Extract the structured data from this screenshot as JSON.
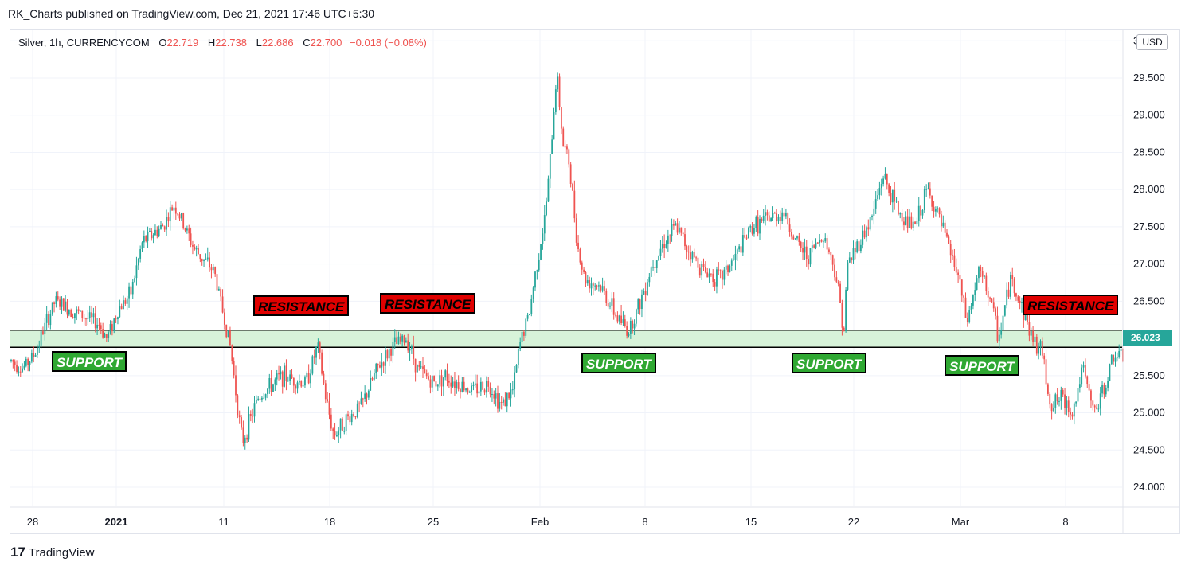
{
  "header": {
    "published_by": "RK_Charts published on TradingView.com, Dec 21, 2021 17:46 UTC+5:30"
  },
  "legend": {
    "symbol": "Silver, 1h, CURRENCYCOM",
    "open_label": "O",
    "open": "22.719",
    "high_label": "H",
    "high": "22.738",
    "low_label": "L",
    "low": "22.686",
    "close_label": "C",
    "close": "22.700",
    "change": "−0.018 (−0.08%)"
  },
  "currency_badge": "USD",
  "last_price_tag": "26.023",
  "footer": {
    "brand": "TradingView",
    "logo_glyph": "17"
  },
  "annotations": {
    "resistance_1": "RESISTANCE",
    "resistance_2": "RESISTANCE",
    "resistance_3": "RESISTANCE",
    "support_1": "SUPPORT",
    "support_2": "SUPPORT",
    "support_3": "SUPPORT",
    "support_4": "SUPPORT"
  },
  "colors": {
    "up": "#26a69a",
    "down": "#ef5350",
    "zone_fill": "#d7f3d9",
    "resistance_box": "#e00000",
    "support_box": "#2fa832"
  },
  "chart_data": {
    "type": "candlestick",
    "title": "",
    "xlabel": "",
    "ylabel": "",
    "ylim": [
      23.75,
      30.5
    ],
    "y_ticks": [
      "24.000",
      "24.500",
      "25.000",
      "25.500",
      "26.000",
      "26.500",
      "27.000",
      "27.500",
      "28.000",
      "28.500",
      "29.000",
      "29.500",
      "3"
    ],
    "x_ticks": [
      "28",
      "2021",
      "11",
      "18",
      "25",
      "Feb",
      "8",
      "15",
      "22",
      "Mar",
      "8"
    ],
    "x_tick_bold": [
      "2021"
    ],
    "support_resistance_zone": {
      "low": 25.88,
      "high": 26.11
    },
    "last_price": 26.023,
    "price_path_x": [
      0,
      15,
      30,
      40,
      55,
      90,
      110,
      120,
      135,
      150,
      165,
      190,
      205,
      230,
      255,
      275,
      290,
      310,
      340,
      370,
      385,
      395,
      405,
      420,
      440,
      460,
      480,
      497,
      510,
      530,
      545,
      560,
      580,
      600,
      615,
      630,
      640,
      650,
      660,
      670,
      677,
      685,
      693,
      700,
      712,
      720,
      740,
      760,
      775,
      790,
      805,
      820,
      835,
      850,
      870,
      890,
      910,
      930,
      950,
      970,
      985,
      1000,
      1020,
      1035,
      1046,
      1050,
      1065,
      1080,
      1095,
      1105,
      1120,
      1135,
      1150,
      1162,
      1175,
      1190,
      1200,
      1215,
      1228,
      1240,
      1255,
      1270,
      1282,
      1295,
      1305,
      1320,
      1333,
      1345,
      1360,
      1372,
      1385,
      1397,
      1400
    ],
    "price_path_y": [
      25.7,
      25.6,
      25.8,
      26.1,
      26.5,
      26.3,
      26.2,
      26.0,
      26.4,
      26.6,
      27.3,
      27.5,
      27.8,
      27.2,
      26.9,
      25.9,
      24.6,
      25.2,
      25.5,
      25.4,
      25.9,
      25.2,
      24.7,
      24.9,
      25.1,
      25.6,
      25.9,
      26.0,
      25.6,
      25.4,
      25.5,
      25.4,
      25.3,
      25.4,
      25.1,
      25.3,
      26.0,
      26.3,
      27.0,
      27.6,
      28.4,
      29.6,
      28.6,
      28.4,
      27.2,
      26.8,
      26.7,
      26.3,
      26.1,
      26.5,
      27.0,
      27.3,
      27.5,
      27.2,
      26.9,
      26.8,
      27.1,
      27.5,
      27.6,
      27.7,
      27.3,
      27.1,
      27.4,
      26.9,
      26.1,
      27.0,
      27.3,
      27.6,
      28.2,
      27.9,
      27.6,
      27.5,
      28.0,
      27.7,
      27.3,
      26.8,
      26.2,
      26.9,
      26.6,
      26.0,
      26.8,
      26.4,
      26.0,
      25.8,
      25.1,
      25.2,
      25.0,
      25.6,
      25.0,
      25.3,
      25.8,
      25.7,
      26.02
    ]
  }
}
